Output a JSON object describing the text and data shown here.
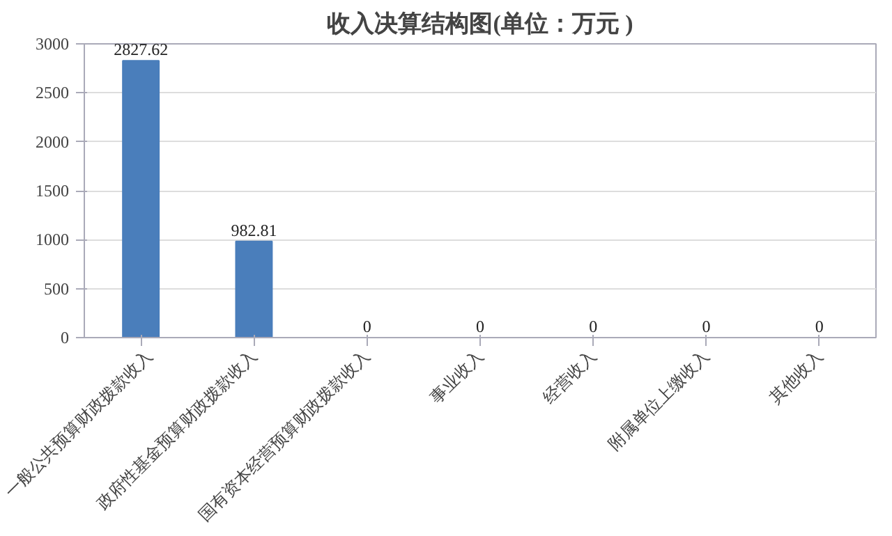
{
  "chart_data": {
    "type": "bar",
    "title": "收入决算结构图(单位：万元 )",
    "categories": [
      "一般公共预算财政拨款收入",
      "政府性基金预算财政拨款收入",
      "国有资本经营预算财政拨款收入",
      "事业收入",
      "经营收入",
      "附属单位上缴收入",
      "其他收入"
    ],
    "values": [
      2827.62,
      982.81,
      0,
      0,
      0,
      0,
      0
    ],
    "color": "#4a7ebb",
    "ylim": [
      0,
      3000
    ],
    "yticks": [
      0,
      500,
      1000,
      1500,
      2000,
      2500,
      3000
    ],
    "grid": "y",
    "data_labels": true
  }
}
